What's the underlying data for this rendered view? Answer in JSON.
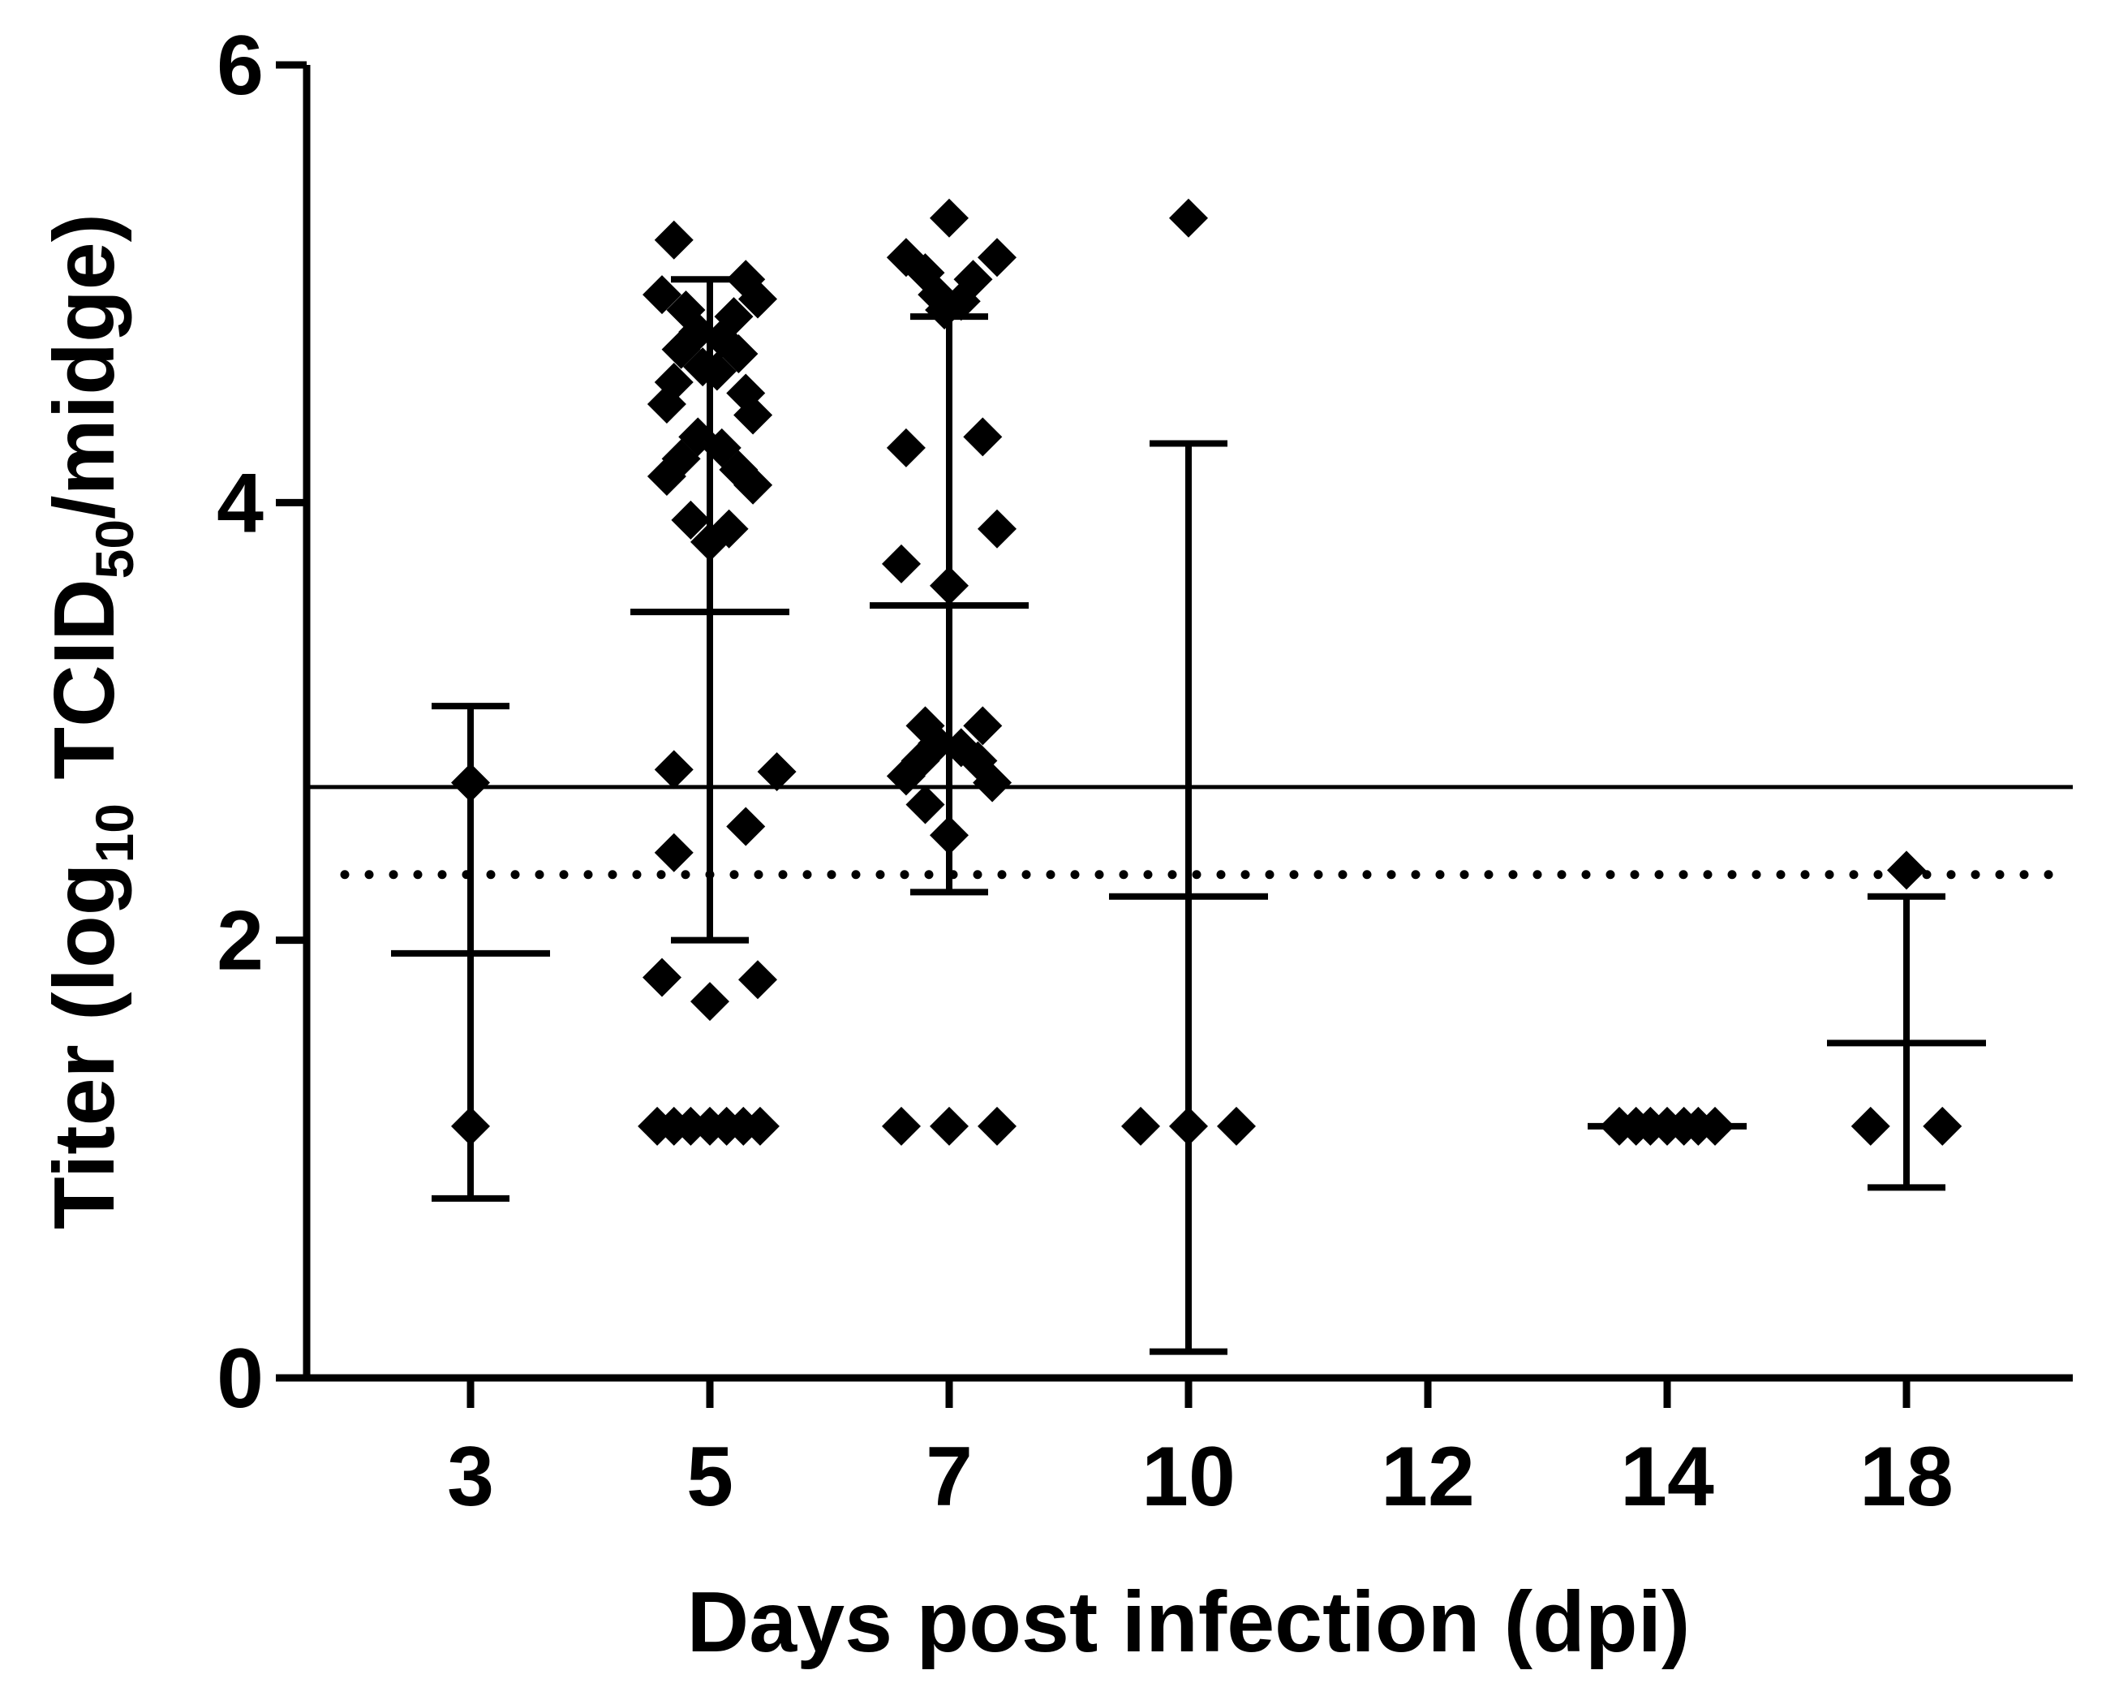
{
  "chart_data": {
    "type": "scatter",
    "title": "",
    "xlabel": "Days post infection (dpi)",
    "ylabel": {
      "prefix": "Titer (log",
      "sub1": "10",
      "mid": " TCID",
      "sub2": "50",
      "suffix": "/midge)"
    },
    "ylim": [
      0,
      6
    ],
    "yticks": [
      "0",
      "2",
      "4",
      "6"
    ],
    "categories": [
      "3",
      "5",
      "7",
      "10",
      "12",
      "14",
      "18"
    ],
    "reference_lines": [
      {
        "name": "threshold-solid",
        "style": "solid",
        "y": 2.7
      },
      {
        "name": "detection-limit-dotted",
        "style": "dotted",
        "y": 2.3
      }
    ],
    "groups": [
      {
        "category": "3",
        "points": [
          [
            0,
            2.72
          ],
          [
            0,
            1.15
          ]
        ],
        "mean": 1.94,
        "sd_low": 0.82,
        "sd_high": 3.07
      },
      {
        "category": "5",
        "points": [
          [
            -0.15,
            5.2
          ],
          [
            0.15,
            5.02
          ],
          [
            -0.2,
            4.95
          ],
          [
            0.2,
            4.93
          ],
          [
            -0.1,
            4.88
          ],
          [
            0.1,
            4.85
          ],
          [
            -0.05,
            4.78
          ],
          [
            0.05,
            4.75
          ],
          [
            -0.12,
            4.7
          ],
          [
            0.12,
            4.68
          ],
          [
            -0.03,
            4.62
          ],
          [
            0.03,
            4.6
          ],
          [
            -0.15,
            4.55
          ],
          [
            0.15,
            4.5
          ],
          [
            -0.18,
            4.45
          ],
          [
            0.18,
            4.4
          ],
          [
            -0.05,
            4.3
          ],
          [
            0.05,
            4.25
          ],
          [
            -0.12,
            4.2
          ],
          [
            0.12,
            4.15
          ],
          [
            -0.18,
            4.12
          ],
          [
            0.18,
            4.08
          ],
          [
            -0.08,
            3.92
          ],
          [
            0.08,
            3.88
          ],
          [
            0,
            3.82
          ],
          [
            -0.15,
            2.78
          ],
          [
            0.28,
            2.77
          ],
          [
            0.15,
            2.52
          ],
          [
            -0.15,
            2.4
          ],
          [
            -0.2,
            1.83
          ],
          [
            0.2,
            1.82
          ],
          [
            0,
            1.72
          ],
          [
            -0.22,
            1.15
          ],
          [
            -0.15,
            1.15
          ],
          [
            -0.08,
            1.15
          ],
          [
            0,
            1.15
          ],
          [
            0.07,
            1.15
          ],
          [
            0.14,
            1.15
          ],
          [
            0.21,
            1.15
          ]
        ],
        "mean": 3.5,
        "sd_low": 2.0,
        "sd_high": 5.02
      },
      {
        "category": "7",
        "points": [
          [
            0,
            5.3
          ],
          [
            -0.18,
            5.12
          ],
          [
            0.2,
            5.12
          ],
          [
            -0.1,
            5.05
          ],
          [
            0.1,
            5.02
          ],
          [
            -0.05,
            4.95
          ],
          [
            0.05,
            4.92
          ],
          [
            -0.02,
            4.88
          ],
          [
            0.14,
            4.3
          ],
          [
            -0.18,
            4.25
          ],
          [
            0.2,
            3.88
          ],
          [
            -0.2,
            3.72
          ],
          [
            0,
            3.62
          ],
          [
            -0.1,
            2.98
          ],
          [
            0.14,
            2.98
          ],
          [
            -0.05,
            2.9
          ],
          [
            0.05,
            2.88
          ],
          [
            -0.12,
            2.82
          ],
          [
            0.12,
            2.82
          ],
          [
            -0.18,
            2.75
          ],
          [
            0.18,
            2.72
          ],
          [
            -0.1,
            2.62
          ],
          [
            0,
            2.48
          ],
          [
            -0.2,
            1.15
          ],
          [
            0,
            1.15
          ],
          [
            0.2,
            1.15
          ]
        ],
        "mean": 3.53,
        "sd_low": 2.22,
        "sd_high": 4.85
      },
      {
        "category": "10",
        "points": [
          [
            0,
            5.3
          ],
          [
            -0.2,
            1.15
          ],
          [
            0,
            1.15
          ],
          [
            0.2,
            1.15
          ]
        ],
        "mean": 2.2,
        "sd_low": 0.12,
        "sd_high": 4.27
      },
      {
        "category": "12",
        "points": [],
        "mean": null,
        "sd_low": null,
        "sd_high": null
      },
      {
        "category": "14",
        "points": [
          [
            -0.2,
            1.15
          ],
          [
            -0.13,
            1.15
          ],
          [
            -0.07,
            1.15
          ],
          [
            0,
            1.15
          ],
          [
            0.07,
            1.15
          ],
          [
            0.13,
            1.15
          ],
          [
            0.2,
            1.15
          ]
        ],
        "mean": 1.15,
        "sd_low": 1.15,
        "sd_high": 1.15
      },
      {
        "category": "18",
        "points": [
          [
            0,
            2.32
          ],
          [
            -0.15,
            1.15
          ],
          [
            0.15,
            1.15
          ]
        ],
        "mean": 1.53,
        "sd_low": 0.87,
        "sd_high": 2.2
      }
    ]
  }
}
